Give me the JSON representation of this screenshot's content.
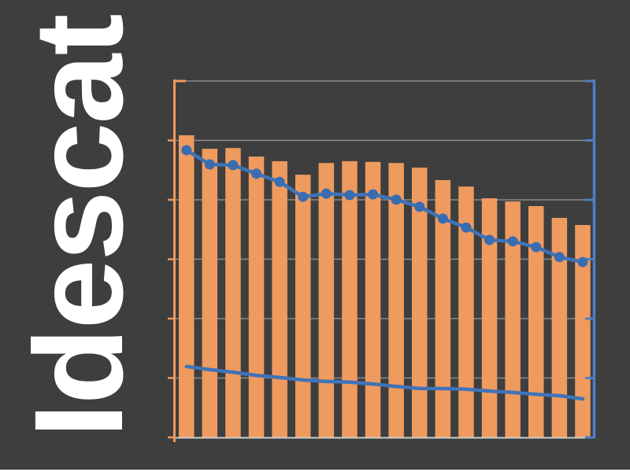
{
  "page": {
    "background_color": "#3E3E3E",
    "watermark_text": "Idescat",
    "watermark_color": "#FFFFFF",
    "bottom_edge_line_color": "#FFFFFF"
  },
  "chart_data": {
    "type": "bar",
    "subtype": "bar-line-combo",
    "title": "",
    "xlabel": "",
    "ylabel": "",
    "point_count": 18,
    "axis_tick_labels_visible": false,
    "legend": {
      "visible": false
    },
    "gridlines": {
      "count": 7,
      "orientation": "horizontal",
      "visible": true
    },
    "ylim_pct": [
      0,
      100
    ],
    "series": [
      {
        "name": "bars",
        "type": "bar",
        "color": "#EF9A5F",
        "values_pct_of_plot_height": [
          84.8,
          81.0,
          81.2,
          78.8,
          77.5,
          73.7,
          77.0,
          77.5,
          77.3,
          77.0,
          75.7,
          72.2,
          70.4,
          67.1,
          66.2,
          64.9,
          61.6,
          59.6
        ]
      },
      {
        "name": "line-with-markers",
        "type": "line",
        "markers": true,
        "color": "#3E73B8",
        "marker_color": "#3A6CB1",
        "values_pct_of_plot_height": [
          80.6,
          76.6,
          76.4,
          74.0,
          71.7,
          67.5,
          68.4,
          68.0,
          68.2,
          66.7,
          64.7,
          61.4,
          58.9,
          55.4,
          55.0,
          53.4,
          50.6,
          49.2
        ]
      },
      {
        "name": "line-plain",
        "type": "line",
        "markers": false,
        "color": "#3E73B8",
        "values_pct_of_plot_height": [
          19.9,
          19.0,
          18.3,
          17.4,
          16.8,
          16.1,
          15.7,
          15.5,
          15.0,
          14.3,
          13.7,
          13.7,
          13.5,
          13.0,
          12.6,
          12.1,
          11.7,
          10.8
        ]
      }
    ],
    "colors": {
      "left_axis": "#EF9A5F",
      "right_axis": "#4C80C6",
      "gridline": "#8A8A8A",
      "baseline": "#CDCDCD",
      "background": "#3E3E3E"
    }
  }
}
